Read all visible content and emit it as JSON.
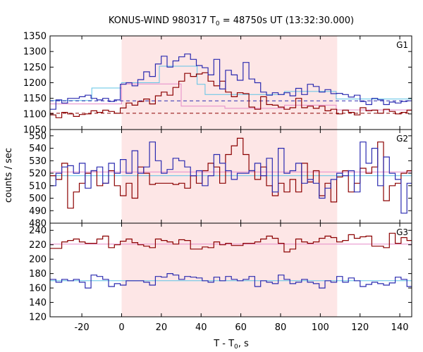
{
  "chart_data": {
    "type": "line",
    "title": "KONUS-WIND 980317 T",
    "title_sub": "0",
    "title_rest": " = 48750s UT (13:32:30.000)",
    "xlabel": "T - T",
    "xlabel_sub": "0",
    "xlabel_rest": ", s",
    "ylabel": "counts / sec",
    "xlim": [
      -36,
      146
    ],
    "xticks": [
      -20,
      0,
      20,
      40,
      60,
      80,
      100,
      120,
      140
    ],
    "xtick_labels": [
      "-20",
      "0",
      "20",
      "40",
      "60",
      "80",
      "100",
      "120",
      "140"
    ],
    "highlight_interval": [
      0,
      108.5
    ],
    "colors": {
      "series1": "#8b0000",
      "series2": "#2b2bb0",
      "fit": "#5fc3e6",
      "fit2": "#e58ac8",
      "highlight": "#fde6e6"
    },
    "panels": [
      {
        "label": "G1",
        "ylim": [
          1050,
          1350
        ],
        "yticks": [
          1050,
          1100,
          1150,
          1200,
          1250,
          1300,
          1350
        ],
        "ytick_labels": [
          "1050",
          "1100",
          "1150",
          "1200",
          "1250",
          "1300",
          "1350"
        ],
        "steps": [
          {
            "name": "",
            "color": "series1",
            "start": -36,
            "bin": 2.944,
            "values": [
              1097,
              1088,
              1105,
              1100,
              1092,
              1098,
              1100,
              1110,
              1105,
              1112,
              1108,
              1102,
              1119,
              1135,
              1128,
              1140,
              1148,
              1132,
              1158,
              1170,
              1160,
              1185,
              1205,
              1230,
              1220,
              1228,
              1232,
              1205,
              1190,
              1205,
              1170,
              1155,
              1168,
              1165,
              1122,
              1115,
              1155,
              1130,
              1128,
              1122,
              1115,
              1120,
              1150,
              1120,
              1125,
              1118,
              1125,
              1110,
              1115,
              1100,
              1112,
              1105,
              1097,
              1120,
              1110,
              1112,
              1102,
              1115,
              1108,
              1100,
              1105,
              1112
            ]
          },
          {
            "name": "",
            "color": "series2",
            "start": -36,
            "bin": 2.944,
            "values": [
              1115,
              1145,
              1135,
              1150,
              1150,
              1155,
              1160,
              1150,
              1145,
              1150,
              1140,
              1145,
              1195,
              1200,
              1190,
              1210,
              1235,
              1220,
              1260,
              1285,
              1250,
              1270,
              1283,
              1292,
              1275,
              1255,
              1248,
              1225,
              1275,
              1180,
              1240,
              1225,
              1208,
              1265,
              1212,
              1200,
              1170,
              1160,
              1168,
              1162,
              1168,
              1158,
              1182,
              1162,
              1195,
              1188,
              1170,
              1178,
              1165,
              1166,
              1162,
              1154,
              1160,
              1140,
              1130,
              1150,
              1145,
              1130,
              1138,
              1135,
              1140,
              1142
            ]
          }
        ],
        "fits": [
          {
            "name": "",
            "color": "fit",
            "dash": false,
            "points": [
              [
                -36,
                1143
              ],
              [
                -15,
                1143
              ],
              [
                -15,
                1183
              ],
              [
                0,
                1183
              ],
              [
                0,
                1200
              ],
              [
                19,
                1200
              ],
              [
                19,
                1253
              ],
              [
                38,
                1253
              ],
              [
                38,
                1195
              ],
              [
                42,
                1195
              ],
              [
                42,
                1162
              ],
              [
                82,
                1162
              ],
              [
                82,
                1172
              ],
              [
                108,
                1172
              ],
              [
                108,
                1148
              ],
              [
                146,
                1148
              ]
            ]
          },
          {
            "name": "",
            "color": "fit2",
            "dash": false,
            "points": [
              [
                -36,
                1132
              ],
              [
                0,
                1132
              ],
              [
                0,
                1196
              ],
              [
                30,
                1196
              ],
              [
                30,
                1125
              ],
              [
                52,
                1125
              ],
              [
                52,
                1118
              ],
              [
                82,
                1118
              ],
              [
                82,
                1128
              ],
              [
                108,
                1128
              ],
              [
                108,
                1113
              ],
              [
                146,
                1113
              ]
            ]
          },
          {
            "name": "",
            "color": "series2",
            "dash": true,
            "points": [
              [
                -36,
                1142
              ],
              [
                146,
                1142
              ]
            ]
          },
          {
            "name": "",
            "color": "series1",
            "dash": true,
            "points": [
              [
                -36,
                1102
              ],
              [
                146,
                1102
              ]
            ]
          }
        ]
      },
      {
        "label": "G2",
        "ylim": [
          480,
          555
        ],
        "yticks": [
          480,
          490,
          500,
          510,
          520,
          530,
          540,
          550
        ],
        "ytick_labels": [
          "480",
          "490",
          "500",
          "510",
          "520",
          "530",
          "540",
          "550"
        ],
        "steps": [
          {
            "name": "",
            "color": "series1",
            "start": -36,
            "bin": 2.944,
            "values": [
              518,
              515,
              528,
              492,
              505,
              512,
              520,
              522,
              510,
              512,
              522,
              510,
              502,
              512,
              500,
              525,
              520,
              511,
              512,
              512,
              512,
              511,
              512,
              508,
              518,
              512,
              522,
              528,
              525,
              512,
              535,
              542,
              548,
              535,
              522,
              515,
              525,
              510,
              502,
              512,
              505,
              515,
              505,
              528,
              513,
              522,
              502,
              512,
              497,
              517,
              522,
              505,
              512,
              524,
              520,
              525,
              545,
              498,
              510,
              512,
              520,
              522
            ]
          },
          {
            "name": "",
            "color": "series2",
            "start": -36,
            "bin": 2.944,
            "values": [
              510,
              520,
              525,
              526,
              520,
              528,
              508,
              522,
              525,
              512,
              528,
              520,
              531,
              520,
              538,
              520,
              525,
              545,
              530,
              520,
              523,
              532,
              530,
              525,
              518,
              522,
              510,
              518,
              535,
              528,
              522,
              515,
              520,
              520,
              522,
              528,
              518,
              532,
              505,
              540,
              520,
              522,
              528,
              512,
              515,
              512,
              500,
              508,
              515,
              520,
              518,
              522,
              505,
              545,
              528,
              540,
              510,
              533,
              520,
              515,
              488,
              512
            ]
          }
        ],
        "fits": [
          {
            "name": "",
            "color": "fit2",
            "dash": false,
            "points": [
              [
                -36,
                521
              ],
              [
                146,
                521
              ]
            ]
          },
          {
            "name": "",
            "color": "fit",
            "dash": false,
            "points": [
              [
                -36,
                518
              ],
              [
                146,
                518
              ]
            ]
          }
        ]
      },
      {
        "label": "G3",
        "ylim": [
          120,
          250
        ],
        "yticks": [
          120,
          140,
          160,
          180,
          200,
          220,
          240
        ],
        "ytick_labels": [
          "120",
          "140",
          "160",
          "180",
          "200",
          "220",
          "240"
        ],
        "steps": [
          {
            "name": "",
            "color": "series1",
            "start": -36,
            "bin": 2.944,
            "values": [
              215,
              215,
              224,
              226,
              228,
              224,
              222,
              222,
              228,
              232,
              216,
              220,
              225,
              228,
              223,
              220,
              218,
              216,
              228,
              226,
              224,
              221,
              227,
              226,
              214,
              214,
              217,
              216,
              224,
              220,
              222,
              219,
              219,
              222,
              222,
              224,
              228,
              232,
              229,
              222,
              210,
              214,
              228,
              224,
              222,
              224,
              229,
              232,
              230,
              224,
              226,
              234,
              229,
              231,
              232,
              218,
              218,
              216,
              236,
              222,
              230,
              226
            ]
          },
          {
            "name": "",
            "color": "series2",
            "start": -36,
            "bin": 2.944,
            "values": [
              172,
              168,
              172,
              170,
              172,
              168,
              160,
              178,
              176,
              172,
              162,
              166,
              164,
              170,
              170,
              170,
              168,
              164,
              176,
              175,
              180,
              178,
              172,
              176,
              175,
              174,
              170,
              168,
              175,
              170,
              176,
              172,
              170,
              172,
              176,
              162,
              170,
              168,
              166,
              178,
              172,
              166,
              168,
              172,
              168,
              166,
              160,
              170,
              168,
              176,
              168,
              174,
              170,
              162,
              165,
              168,
              166,
              164,
              167,
              175,
              172,
              162
            ]
          }
        ],
        "fits": [
          {
            "name": "",
            "color": "fit2",
            "dash": false,
            "points": [
              [
                -36,
                221
              ],
              [
                146,
                221
              ]
            ]
          },
          {
            "name": "",
            "color": "fit",
            "dash": false,
            "points": [
              [
                -36,
                170
              ],
              [
                146,
                170
              ]
            ]
          }
        ]
      }
    ]
  }
}
